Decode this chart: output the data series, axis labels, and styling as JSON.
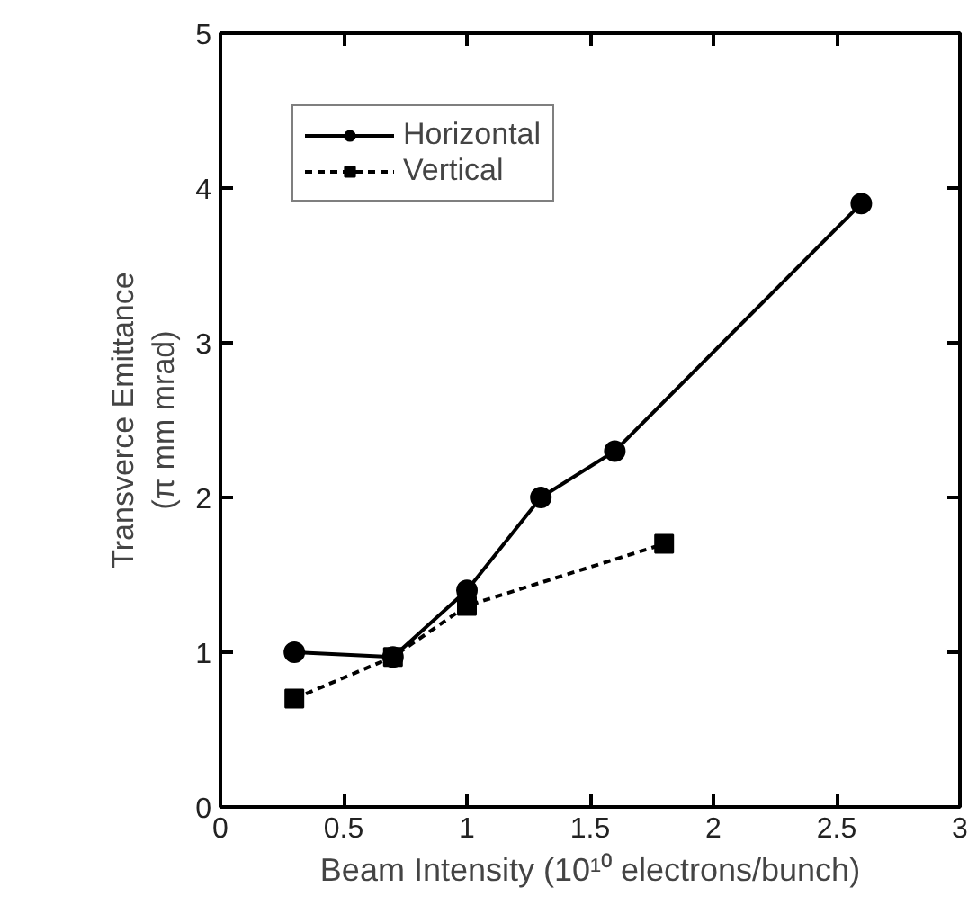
{
  "chart_data": {
    "type": "line",
    "xlabel": "Beam Intensity (10¹⁰ electrons/bunch)",
    "ylabel": "Transverce Emittance\n(π mm mrad)",
    "xlim": [
      0,
      3
    ],
    "ylim": [
      0,
      5
    ],
    "xticks": [
      0,
      0.5,
      1,
      1.5,
      2,
      2.5,
      3
    ],
    "yticks": [
      0,
      1,
      2,
      3,
      4,
      5
    ],
    "grid": false,
    "legend": "top left",
    "series": [
      {
        "name": "Horizontal",
        "color": "#000000",
        "marker": "circle",
        "line_style": "solid",
        "x": [
          0.3,
          0.7,
          1.0,
          1.3,
          1.6,
          2.6
        ],
        "values": [
          1.0,
          0.97,
          1.4,
          2.0,
          2.3,
          3.9
        ]
      },
      {
        "name": "Vertical",
        "color": "#000000",
        "marker": "square",
        "line_style": "dashed",
        "x": [
          0.3,
          0.7,
          1.0,
          1.8
        ],
        "values": [
          0.7,
          0.97,
          1.3,
          1.7
        ]
      }
    ]
  }
}
